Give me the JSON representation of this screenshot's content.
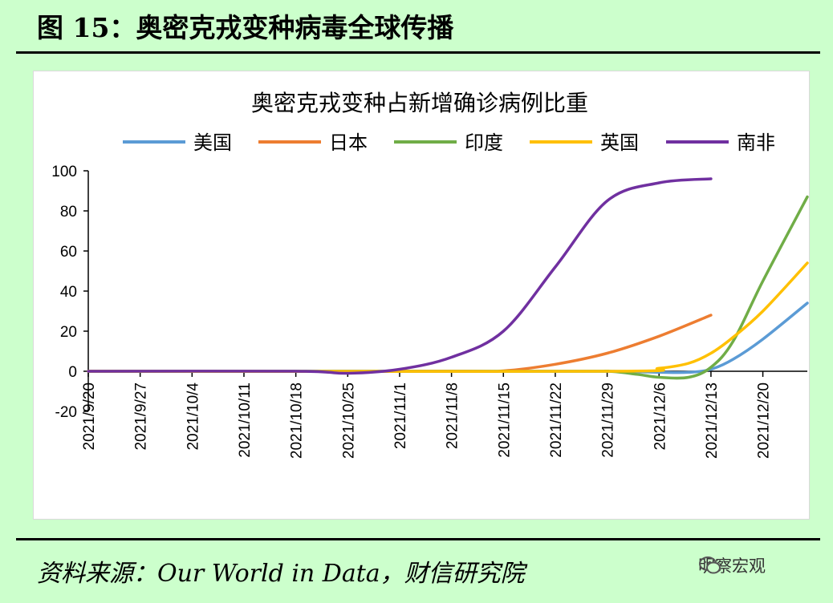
{
  "figure": {
    "title": "图 15：奥密克戎变种病毒全球传播",
    "source": "资料来源：Our World in Data，财信研究院",
    "watermark": "明察宏观",
    "watermark_icon": "wechat-icon"
  },
  "chart_data": {
    "type": "line",
    "title": "奥密克戎变种占新增确诊病例比重",
    "xlabel": "",
    "ylabel": "",
    "ylim": [
      -20,
      100
    ],
    "yticks": [
      -20,
      0,
      20,
      40,
      60,
      80,
      100
    ],
    "xlim": [
      "2021-09-20",
      "2021-12-26"
    ],
    "xticks": [
      "2021/9/20",
      "2021/9/27",
      "2021/10/4",
      "2021/10/11",
      "2021/10/18",
      "2021/10/25",
      "2021/11/1",
      "2021/11/8",
      "2021/11/15",
      "2021/11/22",
      "2021/11/29",
      "2021/12/6",
      "2021/12/13",
      "2021/12/20"
    ],
    "legend_position": "top",
    "grid": false,
    "series": [
      {
        "name": "美国",
        "color": "#5b9bd5",
        "x": [
          "2021-09-20",
          "2021-10-25",
          "2021-11-15",
          "2021-11-29",
          "2021-12-06",
          "2021-12-10",
          "2021-12-13",
          "2021-12-16",
          "2021-12-20",
          "2021-12-26"
        ],
        "y": [
          0,
          0,
          0,
          0,
          -0.5,
          -0.5,
          1,
          6,
          16,
          34
        ]
      },
      {
        "name": "日本",
        "color": "#ed7d31",
        "x": [
          "2021-09-20",
          "2021-11-08",
          "2021-11-15",
          "2021-11-22",
          "2021-11-29",
          "2021-12-06",
          "2021-12-13"
        ],
        "y": [
          0,
          0,
          0.2,
          3.5,
          9,
          17.5,
          28
        ]
      },
      {
        "name": "印度",
        "color": "#70ad47",
        "x": [
          "2021-09-20",
          "2021-11-22",
          "2021-11-29",
          "2021-12-03",
          "2021-12-06",
          "2021-12-10",
          "2021-12-13",
          "2021-12-16",
          "2021-12-20",
          "2021-12-26"
        ],
        "y": [
          0,
          0,
          0,
          -1.5,
          -3,
          -3,
          2,
          15,
          45,
          87
        ]
      },
      {
        "name": "英国",
        "color": "#ffc000",
        "x": [
          "2021-09-20",
          "2021-11-29",
          "2021-12-06",
          "2021-12-10",
          "2021-12-13",
          "2021-12-16",
          "2021-12-20",
          "2021-12-26"
        ],
        "y": [
          0,
          0,
          1.5,
          4,
          9,
          17,
          30,
          54
        ]
      },
      {
        "name": "南非",
        "color": "#7030a0",
        "x": [
          "2021-09-20",
          "2021-10-18",
          "2021-10-25",
          "2021-11-01",
          "2021-11-08",
          "2021-11-15",
          "2021-11-22",
          "2021-11-29",
          "2021-12-06",
          "2021-12-13"
        ],
        "y": [
          0,
          0,
          -1,
          1,
          7,
          20,
          52,
          85,
          94,
          96
        ]
      }
    ]
  }
}
